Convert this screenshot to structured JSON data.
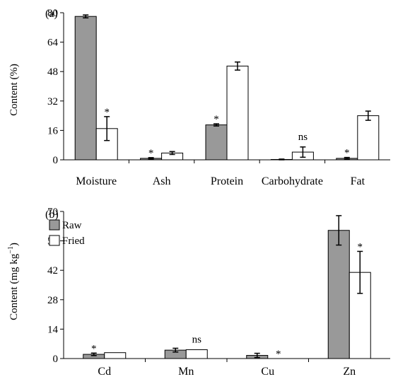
{
  "chart_data": [
    {
      "type": "bar",
      "panel_label": "(a)",
      "categories": [
        "Moisture",
        "Ash",
        "Protein",
        "Carbohydrate",
        "Fat"
      ],
      "ylabel": "Content (%)",
      "ylim": [
        0,
        80
      ],
      "yticks": [
        0,
        16,
        32,
        48,
        64,
        80
      ],
      "series": [
        {
          "name": "Raw",
          "color": "#999999",
          "values": [
            78,
            0.8,
            19,
            0.2,
            0.8
          ],
          "errors": [
            0.8,
            0.4,
            0.6,
            0.2,
            0.5
          ]
        },
        {
          "name": "Fried",
          "color": "#ffffff",
          "values": [
            17,
            3.7,
            51,
            4.2,
            24
          ],
          "errors": [
            6.5,
            0.8,
            2.2,
            2.8,
            2.5
          ]
        }
      ],
      "annotations": [
        "*",
        "*",
        "*",
        "ns",
        "*"
      ],
      "annotation_series": [
        1,
        0,
        0,
        1,
        0
      ]
    },
    {
      "type": "bar",
      "panel_label": "(b)",
      "categories": [
        "Cd",
        "Mn",
        "Cu",
        "Zn"
      ],
      "ylabel_main": "Content (mg kg",
      "ylabel_sup": "−1",
      "ylabel_end": ")",
      "ylim": [
        0,
        70
      ],
      "yticks": [
        0,
        14,
        28,
        42,
        56,
        70
      ],
      "legend_position": "top-left",
      "series": [
        {
          "name": "Raw",
          "color": "#999999",
          "values": [
            2,
            4,
            1.5,
            61
          ],
          "errors": [
            0.6,
            0.9,
            1.0,
            7
          ]
        },
        {
          "name": "Fried",
          "color": "#ffffff",
          "values": [
            2.8,
            4.2,
            0,
            41
          ],
          "errors": [
            0,
            0,
            0,
            10
          ]
        }
      ],
      "annotations": [
        "*",
        "ns",
        "*",
        "*"
      ],
      "annotation_series": [
        0,
        1,
        1,
        1
      ]
    }
  ]
}
